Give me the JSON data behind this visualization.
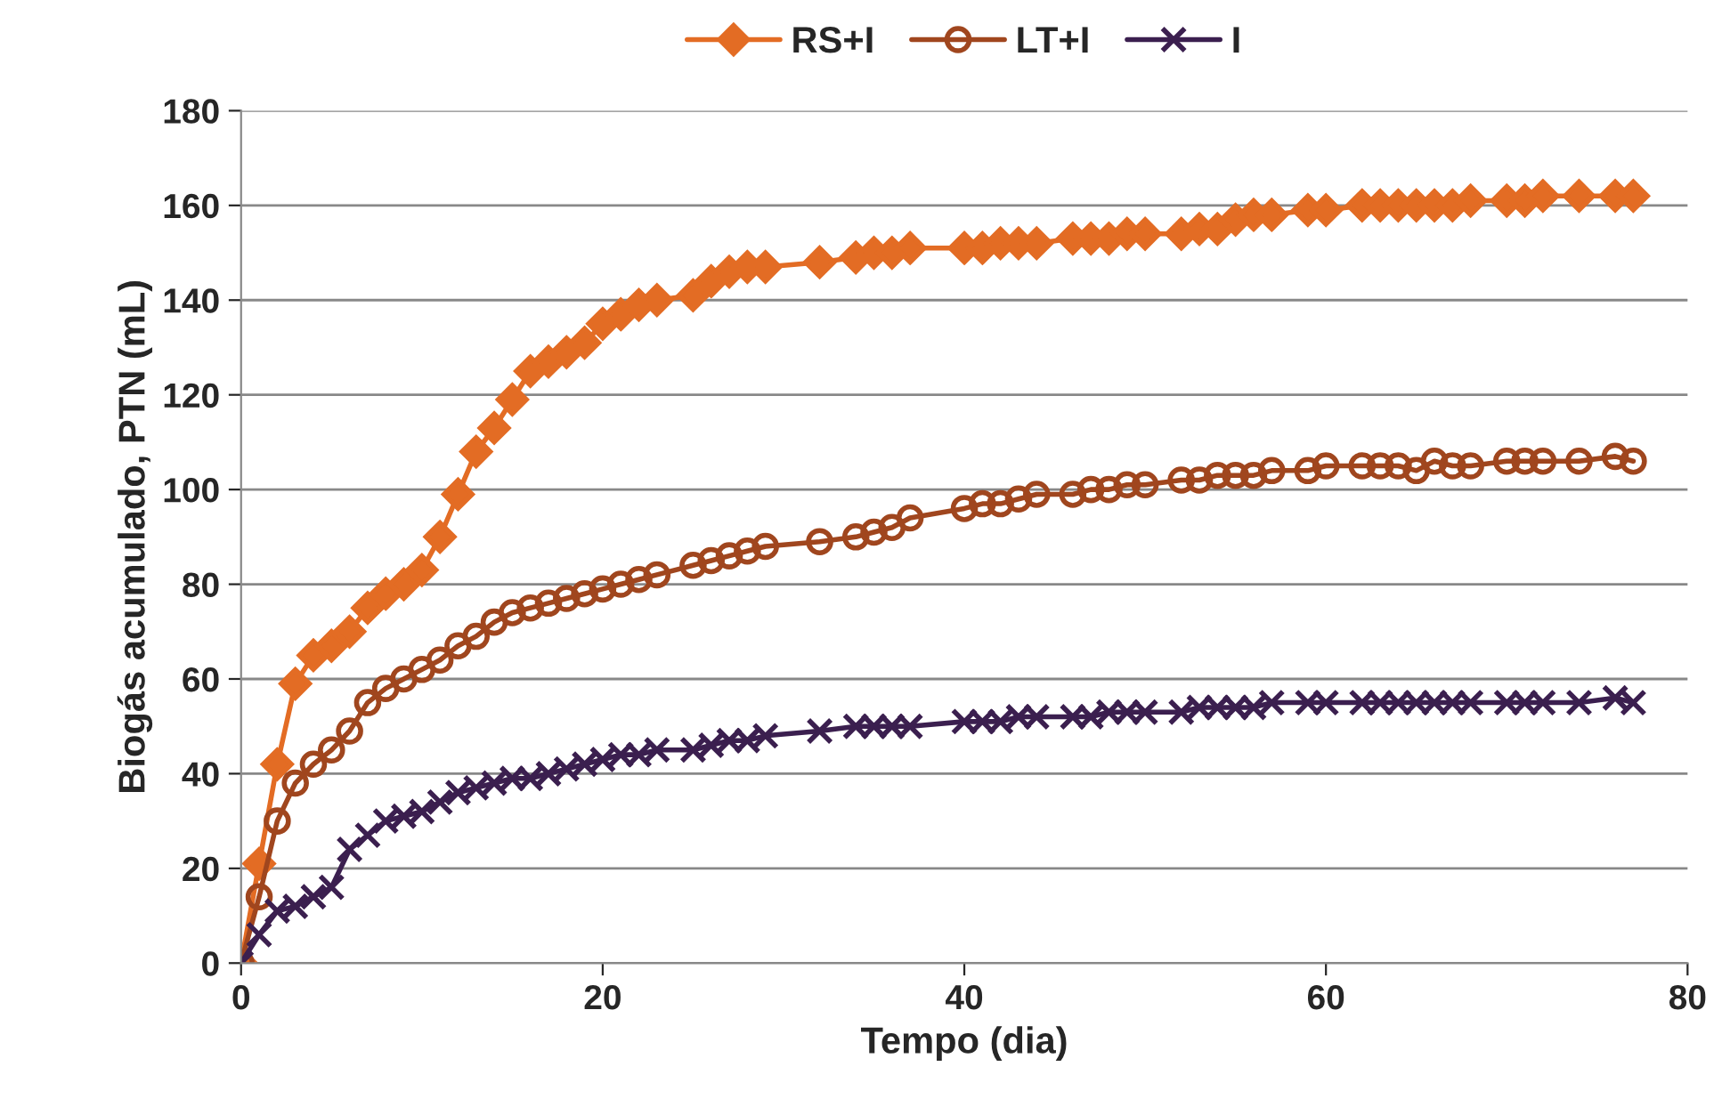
{
  "chart_data": {
    "type": "line",
    "xlabel": "Tempo (dia)",
    "ylabel": "Biogás acumulado, PTN (mL)",
    "x": [
      0,
      1,
      2,
      3,
      4,
      5,
      6,
      7,
      8,
      9,
      10,
      11,
      12,
      13,
      14,
      15,
      16,
      17,
      18,
      19,
      20,
      21,
      22,
      23,
      25,
      26,
      27,
      28,
      29,
      32,
      34,
      35,
      36,
      37,
      40,
      41,
      42,
      43,
      44,
      46,
      47,
      48,
      49,
      50,
      52,
      53,
      54,
      55,
      56,
      57,
      59,
      60,
      62,
      63,
      64,
      65,
      66,
      67,
      68,
      70,
      71,
      72,
      74,
      76,
      77
    ],
    "series": [
      {
        "name": "RS+I",
        "color": "#e36c24",
        "marker": "diamond",
        "values": [
          0,
          21,
          42,
          59,
          65,
          67,
          70,
          75,
          78,
          80,
          83,
          90,
          99,
          108,
          113,
          119,
          125,
          127,
          129,
          131,
          135,
          137,
          139,
          140,
          141,
          144,
          146,
          147,
          147,
          148,
          149,
          150,
          150,
          151,
          151,
          151,
          152,
          152,
          152,
          153,
          153,
          153,
          154,
          154,
          154,
          155,
          155,
          157,
          158,
          158,
          159,
          159,
          160,
          160,
          160,
          160,
          160,
          160,
          161,
          161,
          161,
          162,
          162,
          162,
          162
        ]
      },
      {
        "name": "LT+I",
        "color": "#a0461e",
        "marker": "circle",
        "values": [
          0,
          14,
          30,
          38,
          42,
          45,
          49,
          55,
          58,
          60,
          62,
          64,
          67,
          69,
          72,
          74,
          75,
          76,
          77,
          78,
          79,
          80,
          81,
          82,
          84,
          85,
          86,
          87,
          88,
          89,
          90,
          91,
          92,
          94,
          96,
          97,
          97,
          98,
          99,
          99,
          100,
          100,
          101,
          101,
          102,
          102,
          103,
          103,
          103,
          104,
          104,
          105,
          105,
          105,
          105,
          104,
          106,
          105,
          105,
          106,
          106,
          106,
          106,
          107,
          106
        ]
      },
      {
        "name": "I",
        "color": "#3b1f4f",
        "marker": "cross",
        "values": [
          0,
          6,
          11,
          12,
          14,
          16,
          24,
          27,
          30,
          31,
          32,
          34,
          36,
          37,
          38,
          39,
          39,
          40,
          41,
          42,
          43,
          44,
          44,
          45,
          45,
          46,
          47,
          47,
          48,
          49,
          50,
          50,
          50,
          50,
          51,
          51,
          51,
          52,
          52,
          52,
          52,
          53,
          53,
          53,
          53,
          54,
          54,
          54,
          54,
          55,
          55,
          55,
          55,
          55,
          55,
          55,
          55,
          55,
          55,
          55,
          55,
          55,
          55,
          56,
          55
        ]
      }
    ],
    "xlim": [
      0,
      80
    ],
    "xticks": [
      0,
      20,
      40,
      60,
      80
    ],
    "ylim": [
      0,
      180
    ],
    "yticks": [
      0,
      20,
      40,
      60,
      80,
      100,
      120,
      140,
      160,
      180
    ],
    "grid": "y",
    "legend": "top",
    "line_style": "solid"
  }
}
